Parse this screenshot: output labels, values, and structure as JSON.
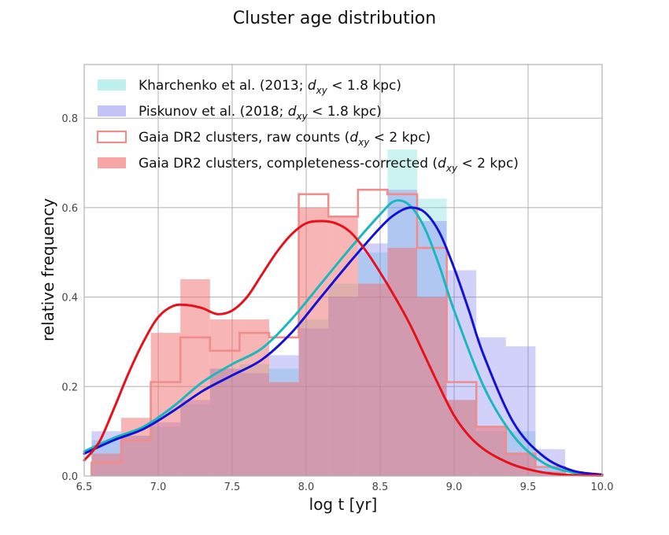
{
  "chart_data": {
    "type": "bar",
    "title": "Cluster age distribution",
    "xlabel": "log t  [yr]",
    "ylabel": "relative frequency",
    "xlim": [
      6.5,
      10.0
    ],
    "ylim": [
      0.0,
      0.92
    ],
    "xticks": [
      "6.5",
      "7.0",
      "7.5",
      "8.0",
      "8.5",
      "9.0",
      "9.5",
      "10.0"
    ],
    "xtick_values": [
      6.5,
      7.0,
      7.5,
      8.0,
      8.5,
      9.0,
      9.5,
      10.0
    ],
    "yticks": [
      "0.0",
      "0.2",
      "0.4",
      "0.6",
      "0.8"
    ],
    "ytick_values": [
      0.0,
      0.2,
      0.4,
      0.6,
      0.8
    ],
    "grid": true,
    "legend_position": "top-left",
    "series": [
      {
        "name": "Kharchenko et al. (2013; dxy < 1.8 kpc)",
        "legend_main": "Kharchenko et al. (2013; ",
        "legend_sub": "xy",
        "legend_rest": " < 1.8 kpc)",
        "kind": "hist-filled",
        "color": "#5fd8d4",
        "opacity": 0.32,
        "bins": [
          6.55,
          6.75,
          6.95,
          7.15,
          7.35,
          7.55,
          7.75,
          7.95,
          8.15,
          8.35,
          8.55,
          8.75,
          8.95,
          9.15,
          9.35,
          9.55,
          9.75
        ],
        "values": [
          0.08,
          0.09,
          0.11,
          0.16,
          0.24,
          0.25,
          0.24,
          0.35,
          0.43,
          0.5,
          0.73,
          0.62,
          0.17,
          0.1,
          0.1,
          0.02
        ]
      },
      {
        "name": "Piskunov et al. (2018; dxy < 1.8 kpc)",
        "legend_main": "Piskunov et al. (2018; ",
        "legend_sub": "xy",
        "legend_rest": " < 1.8 kpc)",
        "kind": "hist-filled",
        "color": "#7b7bf0",
        "opacity": 0.35,
        "bins": [
          6.55,
          6.75,
          6.95,
          7.15,
          7.35,
          7.55,
          7.75,
          7.95,
          8.15,
          8.35,
          8.55,
          8.75,
          8.95,
          9.15,
          9.35,
          9.55,
          9.75
        ],
        "values": [
          0.1,
          0.09,
          0.12,
          0.17,
          0.24,
          0.23,
          0.27,
          0.33,
          0.4,
          0.52,
          0.64,
          0.57,
          0.46,
          0.31,
          0.29,
          0.06
        ]
      },
      {
        "name": "Gaia DR2 clusters, raw counts (dxy < 2 kpc)",
        "legend_main": "Gaia DR2 clusters, raw counts (",
        "legend_sub": "xy",
        "legend_rest": " < 2 kpc)",
        "kind": "hist-step",
        "color": "#f08c8c",
        "opacity": 1.0,
        "bins": [
          6.55,
          6.75,
          6.95,
          7.15,
          7.35,
          7.55,
          7.75,
          7.95,
          8.15,
          8.35,
          8.55,
          8.75,
          8.95,
          9.15,
          9.35,
          9.55,
          9.75
        ],
        "values": [
          0.03,
          0.08,
          0.21,
          0.31,
          0.28,
          0.32,
          0.31,
          0.63,
          0.58,
          0.64,
          0.63,
          0.51,
          0.21,
          0.11,
          0.05,
          0.02
        ]
      },
      {
        "name": "Gaia DR2 clusters, completeness-corrected (dxy < 2 kpc)",
        "legend_main": "Gaia DR2 clusters, completeness-corrected (",
        "legend_sub": "xy",
        "legend_rest": " < 2 kpc)",
        "kind": "hist-filled",
        "color": "#f26b6b",
        "opacity": 0.5,
        "bins": [
          6.55,
          6.75,
          6.95,
          7.15,
          7.35,
          7.55,
          7.75,
          7.95,
          8.15,
          8.35,
          8.55,
          8.75,
          8.95,
          9.15,
          9.35,
          9.55,
          9.75
        ],
        "values": [
          0.05,
          0.13,
          0.32,
          0.44,
          0.35,
          0.35,
          0.21,
          0.6,
          0.58,
          0.43,
          0.51,
          0.4,
          0.17,
          0.11,
          0.05,
          0.01
        ]
      },
      {
        "name": "Kharchenko KDE",
        "kind": "curve",
        "color": "#1ab8bd",
        "x": [
          6.5,
          6.7,
          6.9,
          7.1,
          7.3,
          7.5,
          7.7,
          7.9,
          8.1,
          8.3,
          8.5,
          8.6,
          8.7,
          8.8,
          8.9,
          9.0,
          9.2,
          9.4,
          9.6,
          9.8,
          10.0
        ],
        "y": [
          0.055,
          0.085,
          0.11,
          0.155,
          0.21,
          0.25,
          0.285,
          0.35,
          0.43,
          0.51,
          0.585,
          0.615,
          0.605,
          0.555,
          0.47,
          0.37,
          0.2,
          0.09,
          0.03,
          0.008,
          0.002
        ]
      },
      {
        "name": "Piskunov KDE",
        "kind": "curve",
        "color": "#1212d6",
        "x": [
          6.5,
          6.7,
          6.9,
          7.1,
          7.3,
          7.5,
          7.7,
          7.9,
          8.1,
          8.3,
          8.5,
          8.6,
          8.7,
          8.8,
          8.9,
          9.0,
          9.1,
          9.2,
          9.4,
          9.6,
          9.8,
          10.0
        ],
        "y": [
          0.05,
          0.08,
          0.105,
          0.145,
          0.19,
          0.225,
          0.26,
          0.32,
          0.4,
          0.48,
          0.555,
          0.585,
          0.6,
          0.59,
          0.545,
          0.465,
          0.37,
          0.27,
          0.12,
          0.045,
          0.012,
          0.003
        ]
      },
      {
        "name": "Gaia completeness-corrected KDE",
        "kind": "curve",
        "color": "#e6111a",
        "x": [
          6.5,
          6.6,
          6.7,
          6.8,
          6.9,
          7.0,
          7.1,
          7.2,
          7.3,
          7.4,
          7.5,
          7.6,
          7.7,
          7.8,
          7.9,
          8.0,
          8.1,
          8.2,
          8.3,
          8.4,
          8.5,
          8.6,
          8.7,
          8.8,
          8.9,
          9.0,
          9.1,
          9.2,
          9.3,
          9.4,
          9.5,
          9.6,
          9.7,
          9.8,
          10.0
        ],
        "y": [
          0.035,
          0.075,
          0.15,
          0.23,
          0.3,
          0.355,
          0.38,
          0.382,
          0.375,
          0.362,
          0.37,
          0.4,
          0.45,
          0.5,
          0.54,
          0.565,
          0.57,
          0.565,
          0.545,
          0.505,
          0.455,
          0.4,
          0.34,
          0.27,
          0.2,
          0.135,
          0.09,
          0.06,
          0.04,
          0.025,
          0.015,
          0.008,
          0.004,
          0.002,
          0.001
        ]
      }
    ]
  }
}
